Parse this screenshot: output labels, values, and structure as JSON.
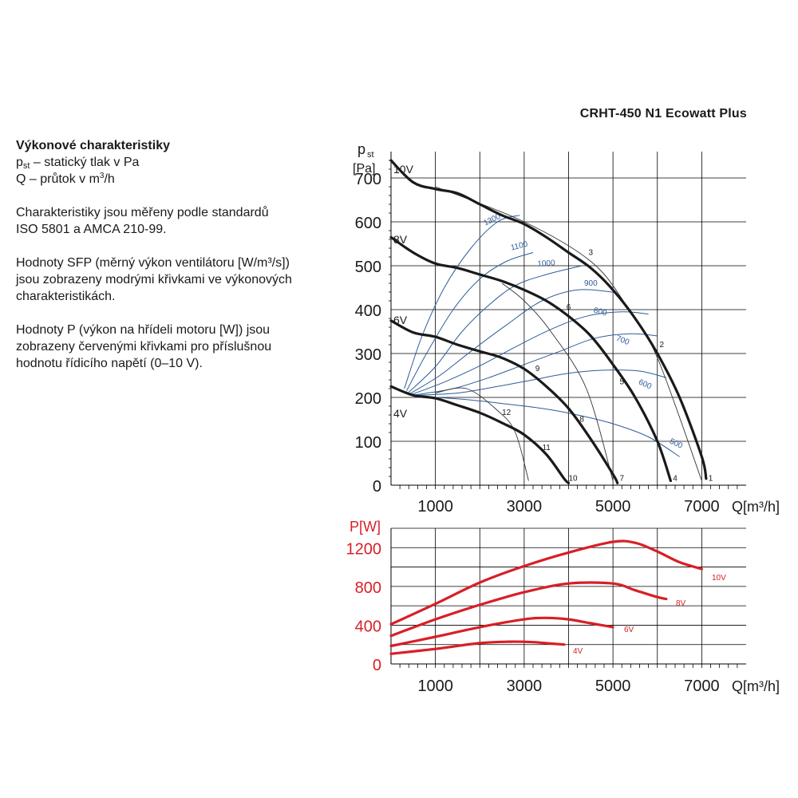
{
  "title": "CRHT-450 N1 Ecowatt Plus",
  "description": {
    "heading": "Výkonové charakteristiky",
    "pst_sym": "p",
    "pst_sub": "st",
    "pst_text": " – statický tlak v Pa",
    "q_text": "Q – průtok v m",
    "q_sup": "3",
    "q_unit_end": "/h",
    "standards_p1": "Charakteristiky jsou měřeny podle standardů",
    "standards_p2": "ISO 5801 a AMCA 210-99.",
    "sfp_l1": "Hodnoty SFP (měrný výkon ventilátoru [W/m³/s])",
    "sfp_l2": "jsou zobrazeny modrými křivkami ve výkonových",
    "sfp_l3": "charakteristikách.",
    "p_l1": "Hodnoty P (výkon na hřídeli motoru [W]) jsou",
    "p_l2": "zobrazeny červenými křivkami pro příslušnou",
    "p_l3": "hodnotu řídicího napětí (0–10 V)."
  },
  "colors": {
    "pressure": "#1a1a1a",
    "sfp": "#2e5c9a",
    "power": "#d81f26",
    "grid": "#000000"
  },
  "chart_data": [
    {
      "type": "line",
      "ylabel_main": "p",
      "ylabel_sub": "st",
      "ylabel_unit": "[Pa]",
      "xlabel": "Q[m³/h]",
      "xlim": [
        0,
        8000
      ],
      "ylim": [
        0,
        760
      ],
      "x_ticks": [
        1000,
        3000,
        5000,
        7000
      ],
      "y_ticks": [
        0,
        100,
        200,
        300,
        400,
        500,
        600,
        700
      ],
      "grid": true,
      "series": [
        {
          "name": "10V",
          "points": [
            [
              0,
              740
            ],
            [
              500,
              690
            ],
            [
              1000,
              675
            ],
            [
              1500,
              665
            ],
            [
              2000,
              640
            ],
            [
              2500,
              615
            ],
            [
              3000,
              595
            ],
            [
              3500,
              565
            ],
            [
              4000,
              530
            ],
            [
              4500,
              495
            ],
            [
              5000,
              445
            ],
            [
              5500,
              380
            ],
            [
              6000,
              300
            ],
            [
              6500,
              200
            ],
            [
              7000,
              65
            ],
            [
              7100,
              15
            ]
          ]
        },
        {
          "name": "8V",
          "points": [
            [
              0,
              565
            ],
            [
              500,
              530
            ],
            [
              1000,
              505
            ],
            [
              1500,
              495
            ],
            [
              2000,
              480
            ],
            [
              2500,
              465
            ],
            [
              3000,
              445
            ],
            [
              3500,
              420
            ],
            [
              4000,
              385
            ],
            [
              4500,
              340
            ],
            [
              5000,
              275
            ],
            [
              5500,
              200
            ],
            [
              6000,
              100
            ],
            [
              6300,
              10
            ]
          ]
        },
        {
          "name": "6V",
          "points": [
            [
              0,
              375
            ],
            [
              500,
              348
            ],
            [
              1000,
              338
            ],
            [
              1500,
              320
            ],
            [
              2000,
              305
            ],
            [
              2500,
              290
            ],
            [
              3000,
              265
            ],
            [
              3500,
              225
            ],
            [
              4000,
              175
            ],
            [
              4500,
              105
            ],
            [
              5000,
              25
            ],
            [
              5100,
              5
            ]
          ]
        },
        {
          "name": "4V",
          "points": [
            [
              0,
              225
            ],
            [
              500,
              205
            ],
            [
              1000,
              198
            ],
            [
              1500,
              182
            ],
            [
              2000,
              165
            ],
            [
              2500,
              142
            ],
            [
              3000,
              115
            ],
            [
              3500,
              70
            ],
            [
              3900,
              15
            ],
            [
              4000,
              5
            ]
          ]
        }
      ],
      "sfp_curves": [
        {
          "label": "1300",
          "points": [
            [
              300,
              220
            ],
            [
              700,
              340
            ],
            [
              1200,
              450
            ],
            [
              1800,
              540
            ],
            [
              2400,
              600
            ],
            [
              2900,
              615
            ]
          ]
        },
        {
          "label": "1100",
          "points": [
            [
              350,
              215
            ],
            [
              800,
              300
            ],
            [
              1400,
              400
            ],
            [
              2000,
              470
            ],
            [
              2600,
              510
            ],
            [
              3200,
              530
            ]
          ]
        },
        {
          "label": "1000",
          "points": [
            [
              400,
              212
            ],
            [
              1000,
              270
            ],
            [
              1600,
              350
            ],
            [
              2200,
              410
            ],
            [
              2800,
              455
            ],
            [
              3500,
              480
            ],
            [
              4300,
              500
            ]
          ]
        },
        {
          "label": "900",
          "points": [
            [
              450,
              210
            ],
            [
              1100,
              250
            ],
            [
              1800,
              305
            ],
            [
              2600,
              365
            ],
            [
              3400,
              420
            ],
            [
              4200,
              445
            ],
            [
              5000,
              440
            ]
          ]
        },
        {
          "label": "800",
          "points": [
            [
              500,
              208
            ],
            [
              1200,
              235
            ],
            [
              2000,
              272
            ],
            [
              2800,
              315
            ],
            [
              3600,
              355
            ],
            [
              4400,
              385
            ],
            [
              5200,
              395
            ],
            [
              5800,
              390
            ]
          ]
        },
        {
          "label": "700",
          "points": [
            [
              550,
              206
            ],
            [
              1400,
              220
            ],
            [
              2200,
              245
            ],
            [
              3000,
              275
            ],
            [
              3800,
              305
            ],
            [
              4600,
              335
            ],
            [
              5400,
              345
            ],
            [
              6000,
              340
            ]
          ]
        },
        {
          "label": "600",
          "points": [
            [
              600,
              205
            ],
            [
              1500,
              210
            ],
            [
              2400,
              225
            ],
            [
              3200,
              240
            ],
            [
              4000,
              255
            ],
            [
              4800,
              262
            ],
            [
              5600,
              260
            ],
            [
              6200,
              245
            ]
          ]
        },
        {
          "label": "500",
          "points": [
            [
              700,
              202
            ],
            [
              1700,
              195
            ],
            [
              2600,
              185
            ],
            [
              3400,
              175
            ],
            [
              4200,
              160
            ],
            [
              5000,
              140
            ],
            [
              5800,
              110
            ],
            [
              6500,
              65
            ]
          ]
        }
      ],
      "operating_lines": [
        {
          "points": [
            [
              7000,
              10
            ],
            [
              6000,
              290
            ],
            [
              5300,
              410
            ],
            [
              4500,
              510
            ],
            [
              3000,
              600
            ],
            [
              1000,
              680
            ]
          ]
        },
        {
          "points": [
            [
              5000,
              10
            ],
            [
              4400,
              220
            ],
            [
              3600,
              350
            ],
            [
              3000,
              420
            ],
            [
              2500,
              460
            ]
          ]
        },
        {
          "points": [
            [
              3100,
              10
            ],
            [
              2800,
              120
            ],
            [
              2400,
              170
            ],
            [
              1700,
              220
            ],
            [
              1000,
              210
            ]
          ]
        }
      ],
      "point_labels": [
        {
          "text": "1",
          "x": 7200,
          "y": 10
        },
        {
          "text": "2",
          "x": 6100,
          "y": 315
        },
        {
          "text": "3",
          "x": 4500,
          "y": 525
        },
        {
          "text": "4",
          "x": 6400,
          "y": 10
        },
        {
          "text": "5",
          "x": 5200,
          "y": 230
        },
        {
          "text": "6",
          "x": 4000,
          "y": 400
        },
        {
          "text": "7",
          "x": 5200,
          "y": 10
        },
        {
          "text": "8",
          "x": 4300,
          "y": 145
        },
        {
          "text": "9",
          "x": 3300,
          "y": 260
        },
        {
          "text": "10",
          "x": 4100,
          "y": 10
        },
        {
          "text": "11",
          "x": 3500,
          "y": 80
        },
        {
          "text": "12",
          "x": 2600,
          "y": 160
        }
      ]
    },
    {
      "type": "line",
      "ylabel": "P[W]",
      "xlabel": "Q[m³/h]",
      "xlim": [
        0,
        8000
      ],
      "ylim": [
        0,
        1400
      ],
      "x_ticks": [
        1000,
        3000,
        5000,
        7000
      ],
      "y_ticks": [
        0,
        400,
        800,
        1200
      ],
      "grid": true,
      "series": [
        {
          "name": "10V",
          "points": [
            [
              0,
              410
            ],
            [
              1000,
              620
            ],
            [
              2000,
              840
            ],
            [
              3000,
              1010
            ],
            [
              4000,
              1150
            ],
            [
              5000,
              1260
            ],
            [
              5500,
              1250
            ],
            [
              6000,
              1160
            ],
            [
              6500,
              1050
            ],
            [
              7000,
              980
            ]
          ]
        },
        {
          "name": "8V",
          "points": [
            [
              0,
              290
            ],
            [
              1000,
              460
            ],
            [
              2000,
              610
            ],
            [
              3000,
              740
            ],
            [
              4000,
              830
            ],
            [
              5000,
              830
            ],
            [
              5500,
              760
            ],
            [
              6000,
              690
            ],
            [
              6200,
              670
            ]
          ]
        },
        {
          "name": "6V",
          "points": [
            [
              0,
              185
            ],
            [
              1000,
              280
            ],
            [
              2000,
              380
            ],
            [
              3000,
              460
            ],
            [
              3500,
              475
            ],
            [
              4000,
              460
            ],
            [
              4500,
              420
            ],
            [
              5000,
              380
            ]
          ]
        },
        {
          "name": "4V",
          "points": [
            [
              0,
              105
            ],
            [
              1000,
              155
            ],
            [
              2000,
              215
            ],
            [
              2700,
              230
            ],
            [
              3200,
              225
            ],
            [
              3600,
              210
            ],
            [
              3900,
              200
            ]
          ]
        }
      ]
    }
  ]
}
